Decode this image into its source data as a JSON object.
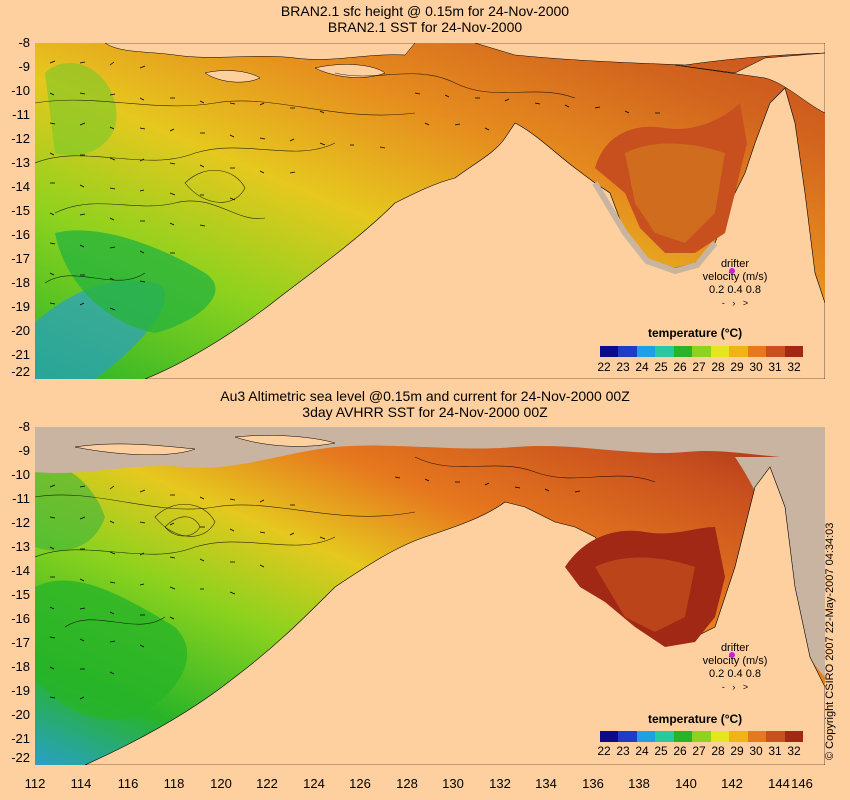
{
  "top_panel": {
    "title_line1": "BRAN2.1 sfc height @ 0.15m for 24-Nov-2000",
    "title_line2": "BRAN2.1 SST for 24-Nov-2000",
    "legend": {
      "title": "temperature (°C)",
      "ticks": [
        "22",
        "23",
        "24",
        "25",
        "26",
        "27",
        "28",
        "29",
        "30",
        "31",
        "32"
      ],
      "drifter_label": "drifter",
      "velocity_label": "velocity (m/s)",
      "velocity_values": "0.2 0.4 0.8"
    }
  },
  "bottom_panel": {
    "title_line1": "Au3 Altimetric sea level  @0.15m and current for 24-Nov-2000 00Z",
    "title_line2": "3day AVHRR SST for 24-Nov-2000 00Z",
    "legend": {
      "title": "temperature (°C)",
      "ticks": [
        "22",
        "23",
        "24",
        "25",
        "26",
        "27",
        "28",
        "29",
        "30",
        "31",
        "32"
      ],
      "drifter_label": "drifter",
      "velocity_label": "velocity (m/s)",
      "velocity_values": "0.2 0.4 0.8"
    }
  },
  "axes": {
    "y_ticks": [
      "-8",
      "-9",
      "-10",
      "-11",
      "-12",
      "-13",
      "-14",
      "-15",
      "-16",
      "-17",
      "-18",
      "-19",
      "-20",
      "-21",
      "-22"
    ],
    "x_ticks": [
      "112",
      "114",
      "116",
      "118",
      "120",
      "122",
      "124",
      "126",
      "128",
      "130",
      "132",
      "134",
      "136",
      "138",
      "140",
      "142",
      "144",
      "146"
    ],
    "lon_range": [
      112,
      146
    ],
    "lat_range": [
      -8,
      -22
    ]
  },
  "colorbar_colors": [
    "#0a0a8a",
    "#1e3cc8",
    "#1ea0e6",
    "#28c8a0",
    "#28b428",
    "#8cd21e",
    "#e6e61e",
    "#f0b414",
    "#e6781e",
    "#c8501e",
    "#a02814"
  ],
  "land_color": "#fecf9f",
  "missing_color": "#c8b4a0",
  "copyright": "© Copyright CSIRO 2007  22-May-2007 04:34:03"
}
